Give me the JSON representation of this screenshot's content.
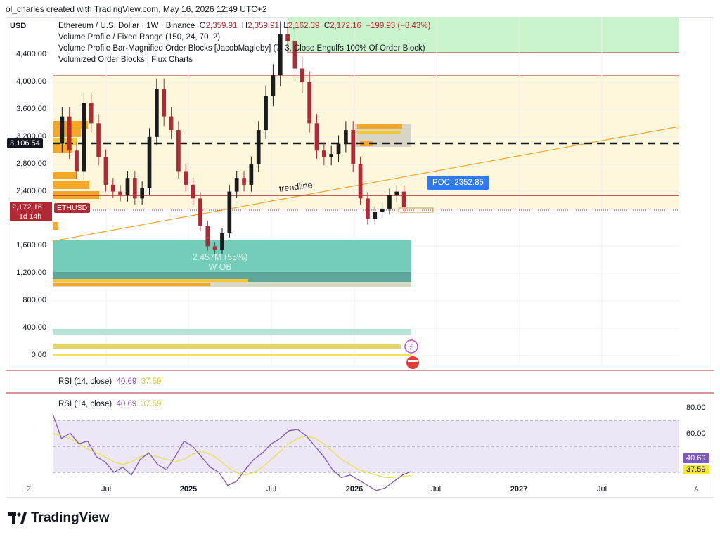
{
  "caption": "ol_charles created with TradingView.com, May 16, 2026 12:49 UTC+2",
  "header": {
    "currency": "USD",
    "symbol_line_prefix": "Ethereum / U.S. Dollar · 1W · Binance",
    "ohlc": {
      "O": "2,359.91",
      "H": "2,359.91",
      "L": "2,162.39",
      "C": "2,172.16",
      "change": "−199.93 (−8.43%)"
    },
    "indicators": [
      "Volume Profile / Fixed Range (150, 24, 70, 2)",
      "Volume Profile Bar-Magnified Order Blocks [JacobMagleby] (7, 3, Close Engulfs 100% Of Order Block)",
      "Volumized Order Blocks | Flux Charts"
    ]
  },
  "tags": {
    "level_line": "3,106.54",
    "last_price": "2,172.16",
    "symbol": "ETHUSD",
    "countdown": "1d 14h",
    "poc": "POC: 2352.85",
    "trendline": "trendline",
    "ob_volume": "2.457M (55%)",
    "ob_type": "W OB"
  },
  "rsi": {
    "title": "RSI (14, close)",
    "value": "40.69",
    "ma": "37.59",
    "levels": [
      "80.00",
      "60.00"
    ]
  },
  "footer": {
    "brand": "TradingView",
    "z_button": "Z",
    "a_button": "A"
  },
  "colors": {
    "bull": "#1b1b1b",
    "bear": "#b22833",
    "rsi_line": "#7e57c2",
    "rsi_ma": "#e9e34a",
    "poc": "#3179f5",
    "green_zone": "#c8f5cc",
    "yellow_zone": "#fdf8dd",
    "ob_teal": "#6fc9b6",
    "volume_orange": "#f6a728"
  },
  "chart_data": [
    {
      "type": "candlestick",
      "title": "Ethereum / U.S. Dollar · 1W · Binance",
      "y_ticks": [
        "4,400.00",
        "4,000.00",
        "3,600.00",
        "3,200.00",
        "2,800.00",
        "2,400.00",
        "1,600.00",
        "1,200.00",
        "800.00",
        "400.00",
        "0.00"
      ],
      "x_ticks": [
        "Jul",
        "2025",
        "Jul",
        "2026",
        "Jul",
        "2027",
        "Jul"
      ],
      "ylim": [
        0,
        4900
      ],
      "horizontal_levels": [
        {
          "label": "3,106.54",
          "value": 3106.54,
          "style": "dashed"
        },
        {
          "label": "2,172.16",
          "value": 2172.16,
          "style": "last price"
        }
      ],
      "price_path": [
        3100,
        3500,
        3000,
        2700,
        3700,
        3400,
        2900,
        2500,
        2400,
        2350,
        2600,
        2300,
        2450,
        3200,
        3900,
        3500,
        3300,
        2700,
        2500,
        2300,
        1900,
        1600,
        1550,
        1800,
        2400,
        2600,
        2500,
        2800,
        3300,
        3800,
        4100,
        4700,
        4600,
        4200,
        4000,
        3400,
        3000,
        2900,
        2950,
        3100,
        3300,
        2800,
        2300,
        2000,
        2100,
        2150,
        2350,
        2400,
        2172
      ]
    },
    {
      "type": "line",
      "title": "RSI (14, close)",
      "ylim": [
        20,
        90
      ],
      "y_ticks": [
        "80.00",
        "60.00"
      ],
      "series": [
        {
          "name": "RSI",
          "values": [
            85,
            66,
            70,
            62,
            64,
            52,
            48,
            40,
            44,
            38,
            50,
            55,
            46,
            42,
            52,
            64,
            60,
            52,
            44,
            40,
            30,
            33,
            42,
            50,
            55,
            62,
            66,
            72,
            73,
            68,
            60,
            52,
            42,
            36,
            38,
            34,
            30,
            26,
            28,
            33,
            38,
            40.69
          ]
        },
        {
          "name": "MA",
          "values": [
            70,
            68,
            66,
            62,
            58,
            55,
            52,
            48,
            46,
            48,
            52,
            54,
            52,
            50,
            48,
            50,
            54,
            56,
            54,
            50,
            44,
            40,
            38,
            40,
            44,
            50,
            56,
            62,
            66,
            68,
            66,
            62,
            56,
            50,
            46,
            42,
            40,
            38,
            36,
            36,
            37,
            37.59
          ]
        }
      ]
    }
  ]
}
